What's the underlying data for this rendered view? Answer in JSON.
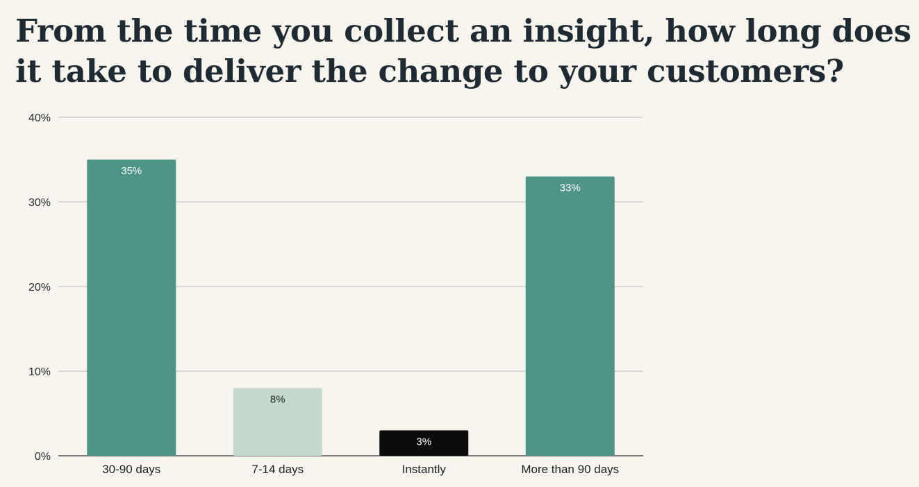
{
  "chart_data": {
    "type": "bar",
    "title": "From the time you collect an insight, how long does it take to deliver the change to your customers?",
    "xlabel": "",
    "ylabel": "",
    "categories": [
      "30-90 days",
      "7-14 days",
      "Instantly",
      "More than 90 days"
    ],
    "values": [
      35,
      8,
      3,
      33
    ],
    "data_labels": [
      "35%",
      "8%",
      "3%",
      "33%"
    ],
    "ylim": [
      0,
      40
    ],
    "yticks": [
      0,
      10,
      20,
      30,
      40
    ],
    "ytick_labels": [
      "0%",
      "10%",
      "20%",
      "30%",
      "40%"
    ],
    "bar_colors": [
      "#4e9487",
      "#c3d9cb",
      "#0c0c0c",
      "#4e9487"
    ],
    "label_colors": [
      "#ffffff",
      "#222222",
      "#ffffff",
      "#ffffff"
    ],
    "grid": true,
    "legend": "none"
  }
}
